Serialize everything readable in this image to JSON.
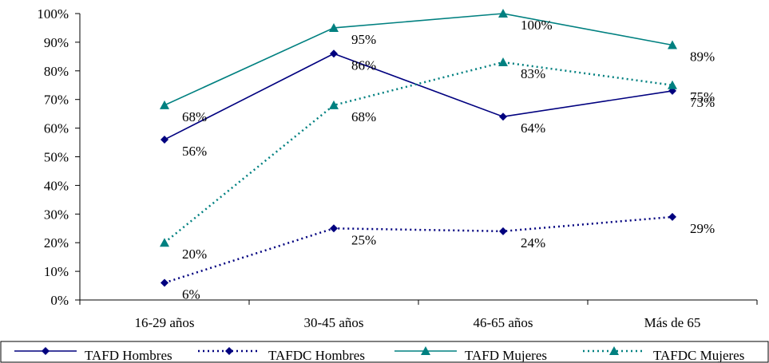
{
  "chart_data": {
    "type": "line",
    "title": "",
    "xlabel": "",
    "ylabel": "",
    "ylim": [
      0,
      100
    ],
    "y_ticks": [
      "0%",
      "10%",
      "20%",
      "30%",
      "40%",
      "50%",
      "60%",
      "70%",
      "80%",
      "90%",
      "100%"
    ],
    "categories": [
      "16-29 años",
      "30-45 años",
      "46-65 años",
      "Más de 65"
    ],
    "grid": false,
    "legend_position": "bottom",
    "series": [
      {
        "name": "TAFD Hombres",
        "values": [
          56,
          86,
          64,
          73
        ],
        "labels": [
          "56%",
          "86%",
          "64%",
          "73%"
        ],
        "color": "#00007f",
        "style": "solid",
        "marker": "diamond"
      },
      {
        "name": "TAFDC Hombres",
        "values": [
          6,
          25,
          24,
          29
        ],
        "labels": [
          "6%",
          "25%",
          "24%",
          "29%"
        ],
        "color": "#00007f",
        "style": "dotted",
        "marker": "diamond"
      },
      {
        "name": "TAFD Mujeres",
        "values": [
          68,
          95,
          100,
          89
        ],
        "labels": [
          "68%",
          "95%",
          "100%",
          "89%"
        ],
        "color": "#008080",
        "style": "solid",
        "marker": "triangle"
      },
      {
        "name": "TAFDC Mujeres",
        "values": [
          20,
          68,
          83,
          75
        ],
        "labels": [
          "20%",
          "68%",
          "83%",
          "75%"
        ],
        "color": "#008080",
        "style": "dotted",
        "marker": "triangle"
      }
    ]
  }
}
